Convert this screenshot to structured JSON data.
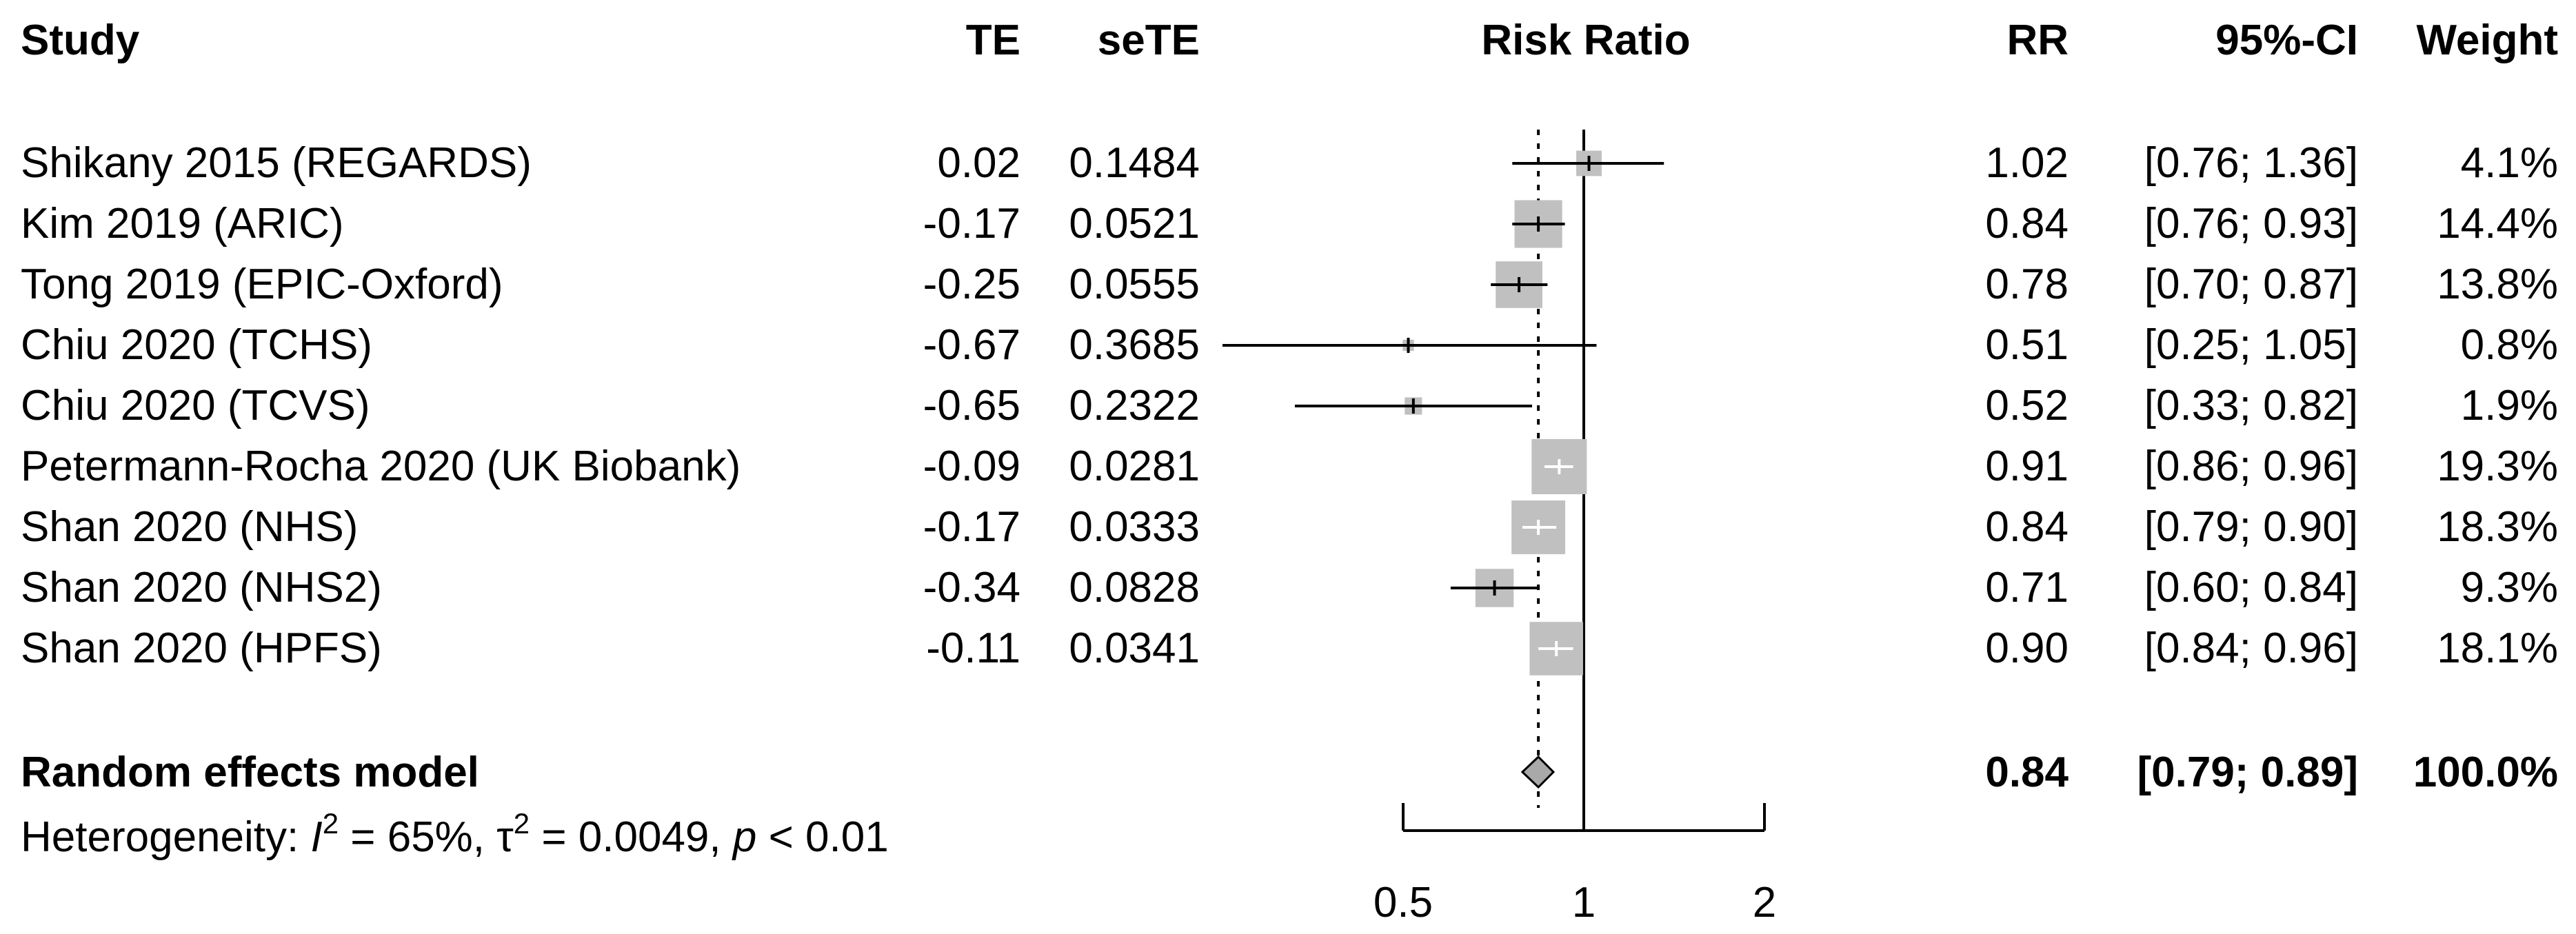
{
  "headers": {
    "study": "Study",
    "te": "TE",
    "sete": "seTE",
    "risk_ratio": "Risk Ratio",
    "rr": "RR",
    "ci": "95%-CI",
    "weight": "Weight"
  },
  "rows": [
    {
      "study": "Shikany 2015 (REGARDS)",
      "te": "0.02",
      "sete": "0.1484",
      "rr": "1.02",
      "ci": "[0.76; 1.36]",
      "weight": "4.1%"
    },
    {
      "study": "Kim 2019 (ARIC)",
      "te": "-0.17",
      "sete": "0.0521",
      "rr": "0.84",
      "ci": "[0.76; 0.93]",
      "weight": "14.4%"
    },
    {
      "study": "Tong 2019 (EPIC-Oxford)",
      "te": "-0.25",
      "sete": "0.0555",
      "rr": "0.78",
      "ci": "[0.70; 0.87]",
      "weight": "13.8%"
    },
    {
      "study": "Chiu 2020 (TCHS)",
      "te": "-0.67",
      "sete": "0.3685",
      "rr": "0.51",
      "ci": "[0.25; 1.05]",
      "weight": "0.8%"
    },
    {
      "study": "Chiu 2020 (TCVS)",
      "te": "-0.65",
      "sete": "0.2322",
      "rr": "0.52",
      "ci": "[0.33; 0.82]",
      "weight": "1.9%"
    },
    {
      "study": "Petermann-Rocha 2020 (UK Biobank)",
      "te": "-0.09",
      "sete": "0.0281",
      "rr": "0.91",
      "ci": "[0.86; 0.96]",
      "weight": "19.3%"
    },
    {
      "study": "Shan 2020 (NHS)",
      "te": "-0.17",
      "sete": "0.0333",
      "rr": "0.84",
      "ci": "[0.79; 0.90]",
      "weight": "18.3%"
    },
    {
      "study": "Shan 2020 (NHS2)",
      "te": "-0.34",
      "sete": "0.0828",
      "rr": "0.71",
      "ci": "[0.60; 0.84]",
      "weight": "9.3%"
    },
    {
      "study": "Shan 2020 (HPFS)",
      "te": "-0.11",
      "sete": "0.0341",
      "rr": "0.90",
      "ci": "[0.84; 0.96]",
      "weight": "18.1%"
    }
  ],
  "summary": {
    "label": "Random effects model",
    "rr": "0.84",
    "ci": "[0.79; 0.89]",
    "weight": "100.0%"
  },
  "heterogeneity": {
    "prefix": "Heterogeneity: ",
    "i_symbol": "I",
    "i_sup": "2",
    "i_value": " = 65%, ",
    "tau_symbol": "τ",
    "tau_sup": "2",
    "tau_value": " = 0.0049, ",
    "p_symbol": "p",
    "p_value": " < 0.01"
  },
  "colors": {
    "square": "#c0c0c0",
    "diamond": "#a9a9a9",
    "line": "#000000",
    "inner_tick_on_square": "#ffffff"
  },
  "chart_data": {
    "type": "forest",
    "title": "Risk Ratio",
    "xscale": "log",
    "xlim": [
      0.5,
      2
    ],
    "xticks": [
      0.5,
      1,
      2
    ],
    "xtick_labels": [
      "0.5",
      "1",
      "2"
    ],
    "reference_line": 1,
    "pooled_line": 0.84,
    "studies": [
      {
        "name": "Shikany 2015 (REGARDS)",
        "rr": 1.02,
        "lower": 0.76,
        "upper": 1.36,
        "weight": 4.1
      },
      {
        "name": "Kim 2019 (ARIC)",
        "rr": 0.84,
        "lower": 0.76,
        "upper": 0.93,
        "weight": 14.4
      },
      {
        "name": "Tong 2019 (EPIC-Oxford)",
        "rr": 0.78,
        "lower": 0.7,
        "upper": 0.87,
        "weight": 13.8
      },
      {
        "name": "Chiu 2020 (TCHS)",
        "rr": 0.51,
        "lower": 0.25,
        "upper": 1.05,
        "weight": 0.8
      },
      {
        "name": "Chiu 2020 (TCVS)",
        "rr": 0.52,
        "lower": 0.33,
        "upper": 0.82,
        "weight": 1.9
      },
      {
        "name": "Petermann-Rocha 2020 (UK Biobank)",
        "rr": 0.91,
        "lower": 0.86,
        "upper": 0.96,
        "weight": 19.3
      },
      {
        "name": "Shan 2020 (NHS)",
        "rr": 0.84,
        "lower": 0.79,
        "upper": 0.9,
        "weight": 18.3
      },
      {
        "name": "Shan 2020 (NHS2)",
        "rr": 0.71,
        "lower": 0.6,
        "upper": 0.84,
        "weight": 9.3
      },
      {
        "name": "Shan 2020 (HPFS)",
        "rr": 0.9,
        "lower": 0.84,
        "upper": 0.96,
        "weight": 18.1
      }
    ],
    "pooled": {
      "name": "Random effects model",
      "rr": 0.84,
      "lower": 0.79,
      "upper": 0.89,
      "weight": 100.0
    }
  }
}
